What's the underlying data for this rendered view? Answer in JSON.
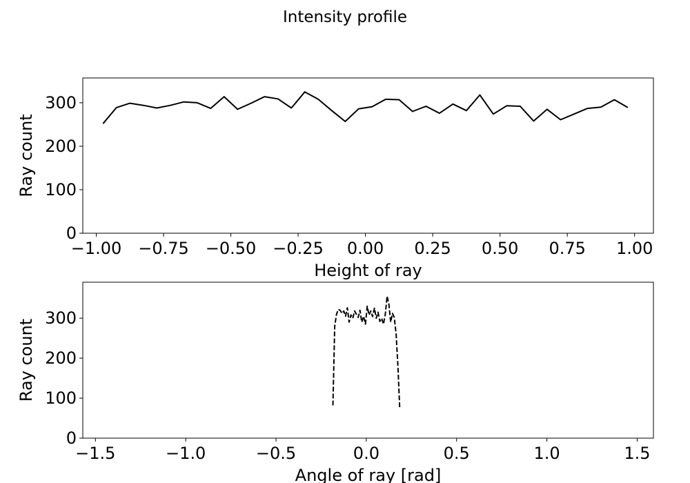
{
  "figure": {
    "title": "Intensity profile"
  },
  "chart_data": [
    {
      "type": "line",
      "title": "",
      "xlabel": "Height of ray",
      "ylabel": "Ray count",
      "xlim": [
        -1.05,
        1.07
      ],
      "ylim": [
        0,
        357
      ],
      "xticks": [
        -1.0,
        -0.75,
        -0.5,
        -0.25,
        0.0,
        0.25,
        0.5,
        0.75,
        1.0
      ],
      "xtick_labels": [
        "−1.00",
        "−0.75",
        "−0.50",
        "−0.25",
        "0.00",
        "0.25",
        "0.50",
        "0.75",
        "1.00"
      ],
      "yticks": [
        0,
        100,
        200,
        300
      ],
      "ytick_labels": [
        "0",
        "100",
        "200",
        "300"
      ],
      "grid": false,
      "line_style": "solid",
      "color": "#000000",
      "x": [
        -0.975,
        -0.925,
        -0.875,
        -0.825,
        -0.775,
        -0.725,
        -0.675,
        -0.625,
        -0.575,
        -0.525,
        -0.475,
        -0.425,
        -0.375,
        -0.325,
        -0.275,
        -0.225,
        -0.175,
        -0.125,
        -0.075,
        -0.025,
        0.025,
        0.075,
        0.125,
        0.175,
        0.225,
        0.275,
        0.325,
        0.375,
        0.425,
        0.475,
        0.525,
        0.575,
        0.625,
        0.675,
        0.725,
        0.775,
        0.825,
        0.875,
        0.925,
        0.975
      ],
      "y": [
        252,
        289,
        299,
        294,
        288,
        294,
        302,
        300,
        287,
        314,
        285,
        299,
        314,
        309,
        288,
        325,
        308,
        282,
        257,
        286,
        291,
        308,
        307,
        280,
        292,
        276,
        297,
        282,
        318,
        274,
        293,
        292,
        258,
        285,
        261,
        274,
        287,
        290,
        307,
        289
      ]
    },
    {
      "type": "line",
      "title": "",
      "xlabel": "Angle of ray [rad]",
      "ylabel": "Ray count",
      "xlim": [
        -1.57,
        1.59
      ],
      "ylim": [
        0,
        390
      ],
      "xticks": [
        -1.5,
        -1.0,
        -0.5,
        0.0,
        0.5,
        1.0,
        1.5
      ],
      "xtick_labels": [
        "−1.5",
        "−1.0",
        "−0.5",
        "0.0",
        "0.5",
        "1.0",
        "1.5"
      ],
      "yticks": [
        0,
        100,
        200,
        300
      ],
      "yticks_labels_note": "",
      "ytick_labels": [
        "0",
        "100",
        "200",
        "300"
      ],
      "grid": false,
      "line_style": "dashed",
      "color": "#000000",
      "x": [
        -0.185,
        -0.175,
        -0.165,
        -0.155,
        -0.145,
        -0.135,
        -0.125,
        -0.115,
        -0.105,
        -0.095,
        -0.085,
        -0.075,
        -0.065,
        -0.055,
        -0.045,
        -0.035,
        -0.025,
        -0.015,
        -0.005,
        0.005,
        0.015,
        0.025,
        0.035,
        0.045,
        0.055,
        0.065,
        0.075,
        0.085,
        0.095,
        0.105,
        0.115,
        0.125,
        0.135,
        0.145,
        0.155,
        0.165,
        0.175,
        0.185
      ],
      "y": [
        82,
        280,
        310,
        322,
        320,
        312,
        318,
        305,
        326,
        290,
        308,
        300,
        318,
        310,
        302,
        320,
        290,
        305,
        285,
        330,
        308,
        318,
        304,
        325,
        300,
        315,
        292,
        300,
        285,
        310,
        355,
        335,
        290,
        312,
        302,
        260,
        180,
        75
      ]
    }
  ]
}
